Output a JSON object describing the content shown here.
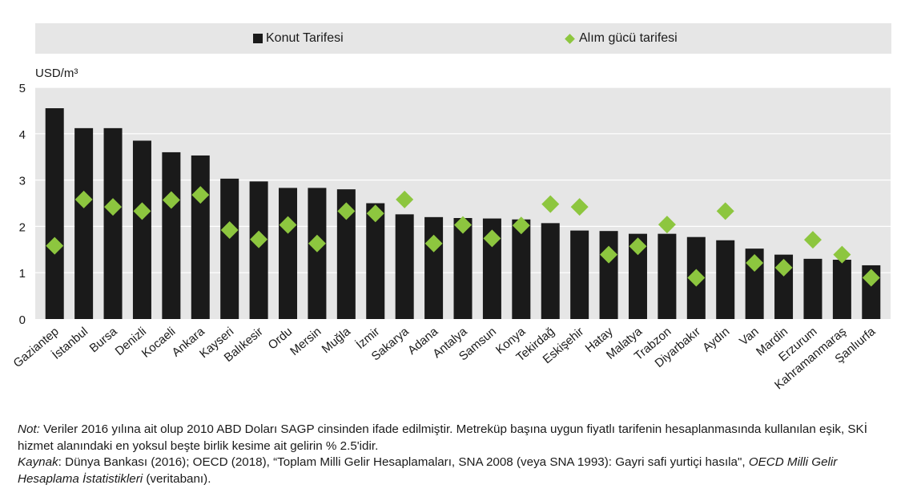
{
  "legend": {
    "bar_label": "Konut Tarifesi",
    "marker_label": "Alım gücü tarifesi"
  },
  "chart_data": {
    "type": "bar",
    "ylabel": "USD/m³",
    "ylim": [
      0,
      5
    ],
    "yticks": [
      0,
      1,
      2,
      3,
      4,
      5
    ],
    "grid": true,
    "bar_color": "#1a1a1a",
    "marker_color": "#8dc63f",
    "background_color": "#e6e6e6",
    "categories": [
      "Gaziantep",
      "İstanbul",
      "Bursa",
      "Denizli",
      "Kocaeli",
      "Ankara",
      "Kayseri",
      "Balıkesir",
      "Ordu",
      "Mersin",
      "Muğla",
      "İzmir",
      "Sakarya",
      "Adana",
      "Antalya",
      "Samsun",
      "Konya",
      "Tekirdağ",
      "Eskişehir",
      "Hatay",
      "Malatya",
      "Trabzon",
      "Diyarbakır",
      "Aydın",
      "Van",
      "Mardin",
      "Erzurum",
      "Kahramanmaraş",
      "Şanlıurfa"
    ],
    "series": [
      {
        "name": "Konut Tarifesi",
        "kind": "bar",
        "values": [
          4.55,
          4.12,
          4.12,
          3.85,
          3.6,
          3.53,
          3.03,
          2.97,
          2.83,
          2.83,
          2.8,
          2.5,
          2.26,
          2.2,
          2.18,
          2.17,
          2.15,
          2.07,
          1.91,
          1.9,
          1.84,
          1.84,
          1.77,
          1.7,
          1.52,
          1.39,
          1.3,
          1.28,
          1.16
        ]
      },
      {
        "name": "Alım gücü tarifesi",
        "kind": "marker",
        "values": [
          1.58,
          2.58,
          2.42,
          2.33,
          2.57,
          2.68,
          1.92,
          1.72,
          2.03,
          1.63,
          2.33,
          2.28,
          2.58,
          1.63,
          2.03,
          1.74,
          2.02,
          2.48,
          2.42,
          1.39,
          1.57,
          2.04,
          0.89,
          2.33,
          1.21,
          1.11,
          1.71,
          1.39,
          0.89
        ]
      }
    ]
  },
  "notes": {
    "note_label": "Not:",
    "note_text": " Veriler 2016 yılına ait olup 2010 ABD Doları SAGP cinsinden ifade edilmiştir. Metreküp başına uygun fiyatlı tarifenin hesaplanmasında kullanılan eşik, SKİ hizmet alanındaki en yoksul beşte birlik kesime ait gelirin % 2.5'idir.",
    "source_label": "Kaynak",
    "source_text": ":   Dünya Bankası (2016); OECD (2018), “Toplam Milli Gelir Hesaplamaları, SNA 2008 (veya SNA 1993): Gayri safi yurtiçi hasıla\", ",
    "source_italic": "OECD Milli Gelir Hesaplama İstatistikleri",
    "source_end": " (veritabanı)."
  }
}
